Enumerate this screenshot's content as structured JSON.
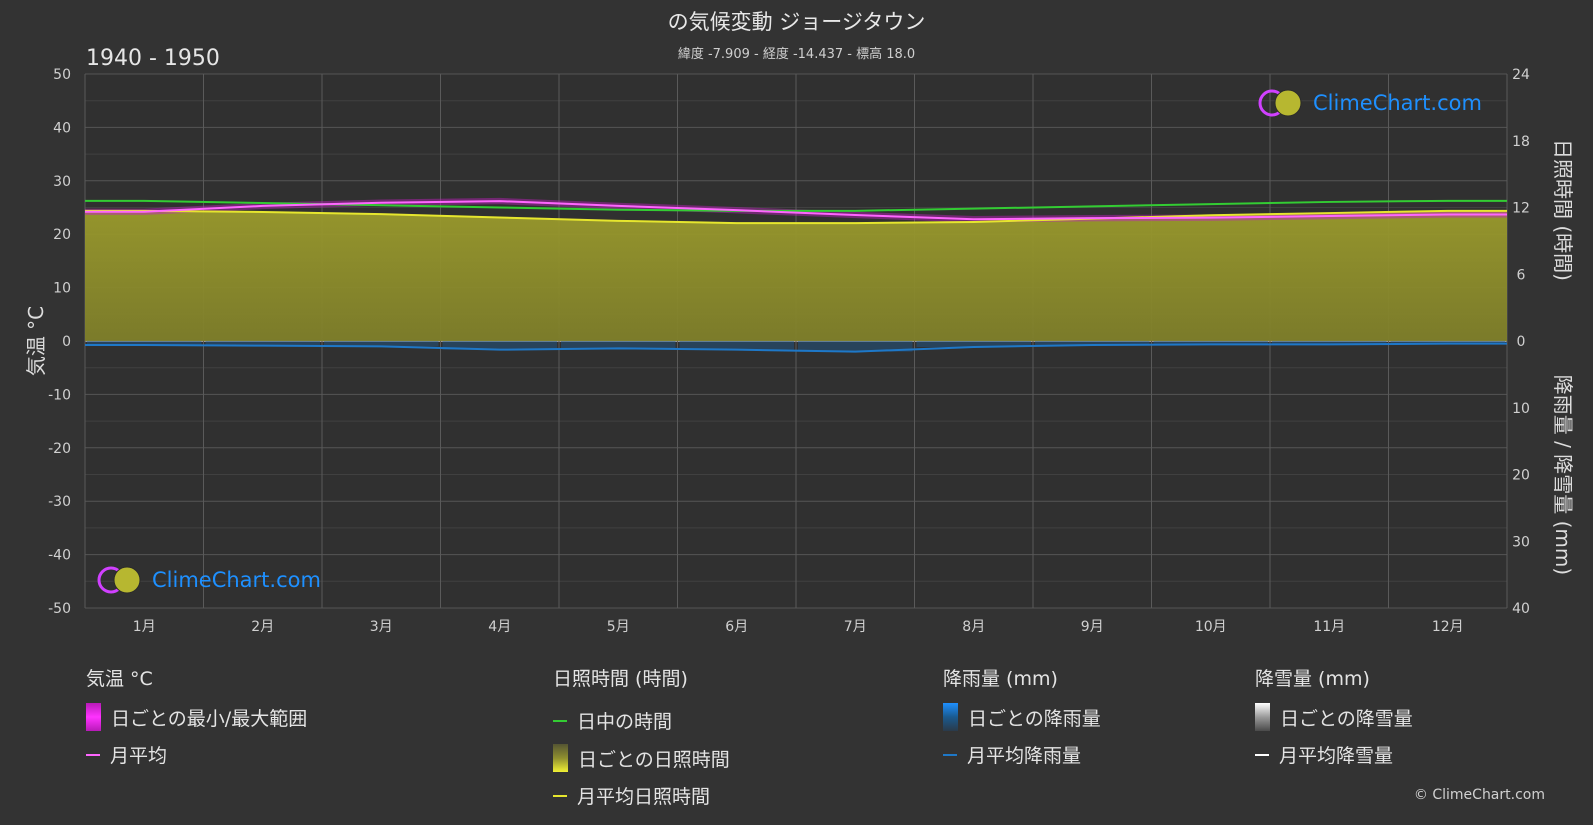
{
  "header": {
    "title": "の気候変動 ジョージタウン",
    "subtitle": "緯度 -7.909 - 経度 -14.437 - 標高 18.0",
    "period": "1940 - 1950"
  },
  "logo": {
    "text": "ClimeChart.com"
  },
  "copyright": "© ClimeChart.com",
  "colors": {
    "background": "#333333",
    "temp_range": "#d61fd6",
    "temp_avg": "#ff66ff",
    "daylight": "#33cc33",
    "sunshine_fill": "#8f8f2f",
    "sunshine_avg": "#e6e62e",
    "rain": "#1e78c8",
    "snow": "#ffffff"
  },
  "chart_data": {
    "type": "area",
    "months": [
      "1月",
      "2月",
      "3月",
      "4月",
      "5月",
      "6月",
      "7月",
      "8月",
      "9月",
      "10月",
      "11月",
      "12月"
    ],
    "axes": {
      "left": {
        "label": "気温 °C",
        "min": -50,
        "max": 50,
        "ticks": [
          50,
          40,
          30,
          20,
          10,
          0,
          -10,
          -20,
          -30,
          -40,
          -50
        ]
      },
      "right_top": {
        "label": "日照時間 (時間)",
        "min": 0,
        "max": 24,
        "ticks": [
          24,
          18,
          12,
          6,
          0
        ]
      },
      "right_bottom": {
        "label": "降雨量 / 降雪量 (mm)",
        "min": 0,
        "max": 40,
        "ticks": [
          10,
          20,
          30,
          40
        ]
      }
    },
    "grid": true,
    "series": [
      {
        "name": "日中の時間",
        "unit": "hours",
        "values": [
          12.6,
          12.4,
          12.2,
          12.0,
          11.8,
          11.7,
          11.7,
          11.9,
          12.1,
          12.3,
          12.5,
          12.6
        ]
      },
      {
        "name": "月平均日照時間",
        "unit": "hours",
        "values": [
          11.7,
          11.6,
          11.4,
          11.1,
          10.8,
          10.6,
          10.6,
          10.7,
          11.0,
          11.3,
          11.5,
          11.7
        ]
      },
      {
        "name": "月平均",
        "unit": "°C",
        "values": [
          24.2,
          25.3,
          25.9,
          26.2,
          25.3,
          24.5,
          23.6,
          22.8,
          23.0,
          23.1,
          23.4,
          23.7
        ]
      },
      {
        "name": "月平均降雨量",
        "unit": "mm",
        "values": [
          0.6,
          0.7,
          0.8,
          1.3,
          1.1,
          1.3,
          1.6,
          0.9,
          0.6,
          0.5,
          0.5,
          0.4
        ]
      },
      {
        "name": "月平均降雪量",
        "unit": "mm",
        "values": [
          0,
          0,
          0,
          0,
          0,
          0,
          0,
          0,
          0,
          0,
          0,
          0
        ]
      }
    ]
  },
  "legend": {
    "temperature": {
      "title": "気温 °C",
      "items": [
        "日ごとの最小/最大範囲",
        "月平均"
      ]
    },
    "sunshine": {
      "title": "日照時間 (時間)",
      "items": [
        "日中の時間",
        "日ごとの日照時間",
        "月平均日照時間"
      ]
    },
    "rain": {
      "title": "降雨量 (mm)",
      "items": [
        "日ごとの降雨量",
        "月平均降雨量"
      ]
    },
    "snow": {
      "title": "降雪量 (mm)",
      "items": [
        "日ごとの降雪量",
        "月平均降雪量"
      ]
    }
  }
}
